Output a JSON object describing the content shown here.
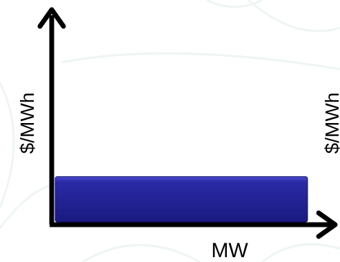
{
  "chart_data": {
    "type": "bar",
    "categories": [
      ""
    ],
    "values": [
      1
    ],
    "title": "",
    "xlabel": "MW",
    "ylabel": "$/MWh",
    "secondary_ylabel": "$/MWh",
    "ylim": [
      0,
      4.5
    ],
    "grid": false,
    "legend": "none"
  },
  "colors": {
    "bar_fill_top": "#4a4ad0",
    "bar_fill": "#2a2aa6",
    "bar_fill_bottom": "#1a1a80",
    "axis": "#000000",
    "background_watermark": "#eef5f2"
  }
}
